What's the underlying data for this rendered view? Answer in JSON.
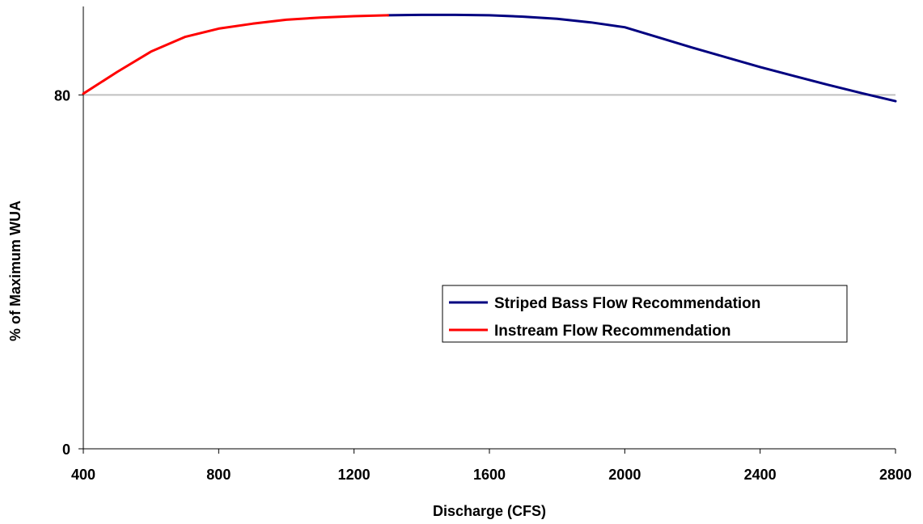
{
  "chart_data": {
    "type": "line",
    "xlabel": "Discharge (CFS)",
    "ylabel": "% of Maximum WUA",
    "xlim": [
      400,
      2800
    ],
    "ylim": [
      0,
      100
    ],
    "x_ticks": [
      "400",
      "800",
      "1200",
      "1600",
      "2000",
      "2400",
      "2800"
    ],
    "y_ticks": [
      "0",
      "80"
    ],
    "reference_line": {
      "y": 80,
      "color": "#c0c0c0"
    },
    "legend": {
      "placement": "center-right",
      "entries": [
        "Striped Bass Flow Recommendation",
        "Instream Flow Recommendation"
      ]
    },
    "series": [
      {
        "name": "Striped Bass Flow Recommendation",
        "color": "#000080",
        "x": [
          1300,
          1400,
          1500,
          1600,
          1700,
          1800,
          1900,
          2000,
          2100,
          2200,
          2300,
          2400,
          2500,
          2600,
          2700,
          2800
        ],
        "y": [
          98.0,
          98.1,
          98.1,
          98.0,
          97.7,
          97.2,
          96.4,
          95.3,
          93.0,
          90.7,
          88.5,
          86.3,
          84.3,
          82.3,
          80.4,
          78.6
        ]
      },
      {
        "name": "Instream Flow Recommendation",
        "color": "#ff0000",
        "x": [
          400,
          500,
          600,
          700,
          800,
          900,
          1000,
          1100,
          1200,
          1300
        ],
        "y": [
          80.3,
          85.2,
          89.8,
          93.1,
          95.0,
          96.1,
          97.0,
          97.5,
          97.8,
          98.0
        ]
      }
    ]
  }
}
